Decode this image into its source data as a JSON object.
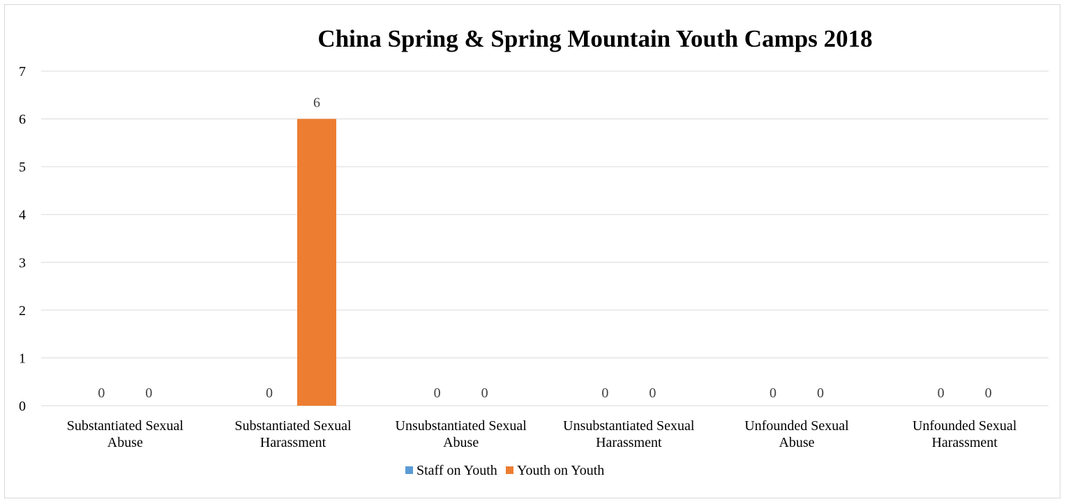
{
  "chart_data": {
    "type": "bar",
    "title": "China Spring & Spring Mountain Youth Camps 2018",
    "categories": [
      [
        "Substantiated Sexual",
        "Abuse"
      ],
      [
        "Substantiated Sexual",
        "Harassment"
      ],
      [
        "Unsubstantiated Sexual",
        "Abuse"
      ],
      [
        "Unsubstantiated Sexual",
        "Harassment"
      ],
      [
        "Unfounded Sexual",
        "Abuse"
      ],
      [
        "Unfounded Sexual",
        "Harassment"
      ]
    ],
    "series": [
      {
        "name": "Staff on Youth",
        "values": [
          0,
          0,
          0,
          0,
          0,
          0
        ],
        "color": "#5b9bd5"
      },
      {
        "name": "Youth on Youth",
        "values": [
          0,
          6,
          0,
          0,
          0,
          0
        ],
        "color": "#ed7d31"
      }
    ],
    "ylim": [
      0,
      7
    ],
    "yticks": [
      0,
      1,
      2,
      3,
      4,
      5,
      6,
      7
    ],
    "grid": true,
    "data_labels": true,
    "legend_position": "bottom",
    "gridline_color": "#d9d9d9"
  }
}
